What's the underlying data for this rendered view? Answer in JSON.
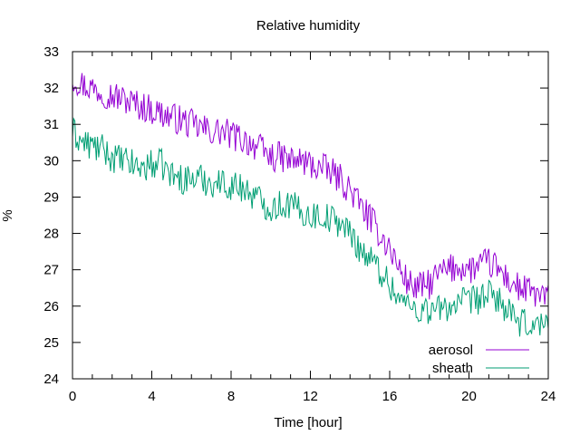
{
  "chart_data": {
    "type": "line",
    "title": "Relative humidity",
    "xlabel": "Time [hour]",
    "ylabel": "%",
    "xlim": [
      0,
      24
    ],
    "ylim": [
      24,
      33
    ],
    "xticks": [
      0,
      4,
      8,
      12,
      16,
      20,
      24
    ],
    "yticks": [
      24,
      25,
      26,
      27,
      28,
      29,
      30,
      31,
      32,
      33
    ],
    "grid": false,
    "legend_position": "bottom-right",
    "series": [
      {
        "name": "aerosol",
        "color": "#9400d3",
        "x": [
          0,
          0.5,
          1,
          1.5,
          2,
          2.5,
          3,
          3.5,
          4,
          4.5,
          5,
          5.5,
          6,
          6.5,
          7,
          7.5,
          8,
          8.5,
          9,
          9.5,
          10,
          10.5,
          11,
          11.5,
          12,
          12.5,
          13,
          13.5,
          14,
          14.5,
          15,
          15.5,
          16,
          16.5,
          17,
          17.5,
          18,
          18.5,
          19,
          19.5,
          20,
          20.5,
          21,
          21.5,
          22,
          22.5,
          23,
          23.5,
          24
        ],
        "y": [
          32.3,
          32.1,
          32.0,
          31.9,
          31.8,
          31.7,
          31.6,
          31.5,
          31.4,
          31.3,
          31.2,
          31.1,
          31.0,
          30.9,
          30.8,
          30.8,
          30.7,
          30.6,
          30.5,
          30.3,
          30.1,
          30.1,
          30.0,
          30.0,
          29.9,
          29.8,
          29.7,
          29.5,
          29.2,
          28.8,
          28.4,
          28.0,
          27.6,
          27.0,
          26.6,
          26.5,
          26.6,
          26.9,
          27.0,
          27.1,
          27.0,
          27.1,
          27.2,
          27.0,
          26.7,
          26.5,
          26.4,
          26.3,
          26.2
        ]
      },
      {
        "name": "sheath",
        "color": "#009e73",
        "x": [
          0,
          0.5,
          1,
          1.5,
          2,
          2.5,
          3,
          3.5,
          4,
          4.5,
          5,
          5.5,
          6,
          6.5,
          7,
          7.5,
          8,
          8.5,
          9,
          9.5,
          10,
          10.5,
          11,
          11.5,
          12,
          12.5,
          13,
          13.5,
          14,
          14.5,
          15,
          15.5,
          16,
          16.5,
          17,
          17.5,
          18,
          18.5,
          19,
          19.5,
          20,
          20.5,
          21,
          21.5,
          22,
          22.5,
          23,
          23.5,
          24
        ],
        "y": [
          30.8,
          30.5,
          30.4,
          30.3,
          30.1,
          30.0,
          29.9,
          29.8,
          29.9,
          29.9,
          29.6,
          29.5,
          29.5,
          29.5,
          29.4,
          29.4,
          29.3,
          29.3,
          29.1,
          28.9,
          28.7,
          28.8,
          28.8,
          28.6,
          28.5,
          28.5,
          28.4,
          28.3,
          28.0,
          27.6,
          27.3,
          27.0,
          26.6,
          26.2,
          26.0,
          25.9,
          25.9,
          25.9,
          26.0,
          26.1,
          26.1,
          26.2,
          26.3,
          26.2,
          25.8,
          25.5,
          25.5,
          25.5,
          25.5
        ]
      }
    ]
  }
}
